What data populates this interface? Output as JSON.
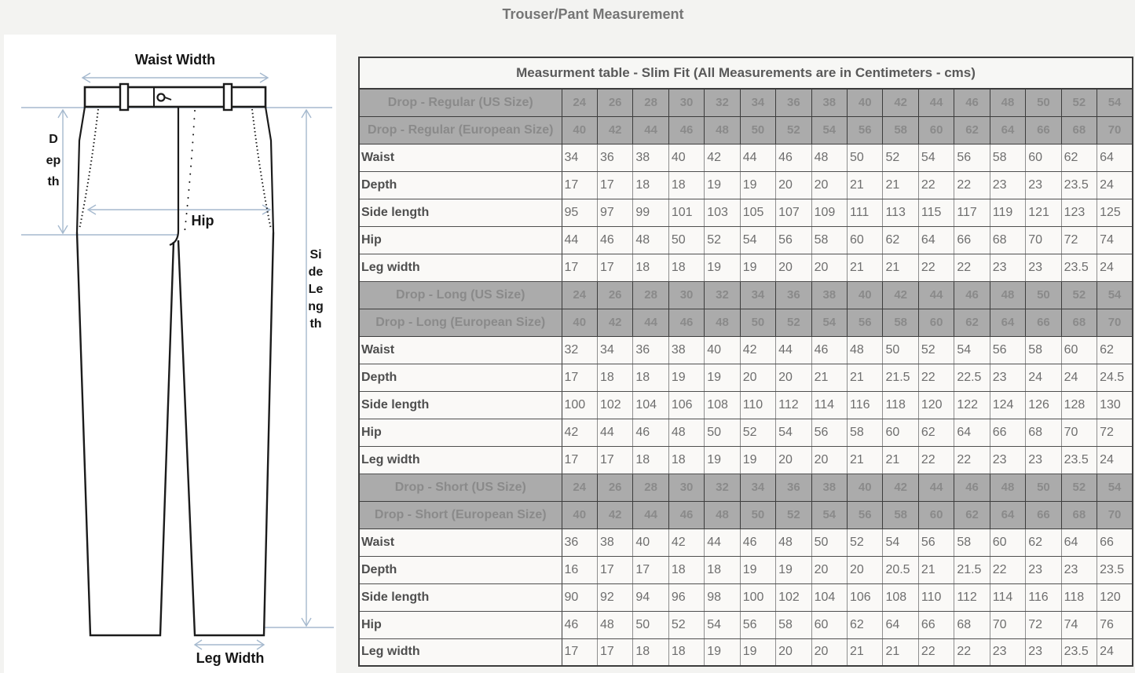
{
  "page": {
    "title": "Trouser/Pant Measurement"
  },
  "colors": {
    "header_bg": "#ababab",
    "header_text": "#8a8a8a",
    "arrow": "#a5b9ce",
    "outline": "#1b1b1b"
  },
  "diagram": {
    "waist_width_label": "Waist Width",
    "depth_label": "Depth",
    "hip_label": "Hip",
    "side_length_label": "Side Length",
    "leg_width_label": "Leg Width"
  },
  "table": {
    "title": "Measurment table - Slim Fit (All Measurements are in Centimeters - cms)",
    "sections": [
      {
        "us_label": "Drop - Regular (US Size)",
        "us_sizes": [
          "24",
          "26",
          "28",
          "30",
          "32",
          "34",
          "36",
          "38",
          "40",
          "42",
          "44",
          "46",
          "48",
          "50",
          "52",
          "54"
        ],
        "eu_label": "Drop - Regular (European Size)",
        "eu_sizes": [
          "40",
          "42",
          "44",
          "46",
          "48",
          "50",
          "52",
          "54",
          "56",
          "58",
          "60",
          "62",
          "64",
          "66",
          "68",
          "70"
        ],
        "rows": [
          {
            "label": "Waist",
            "values": [
              "34",
              "36",
              "38",
              "40",
              "42",
              "44",
              "46",
              "48",
              "50",
              "52",
              "54",
              "56",
              "58",
              "60",
              "62",
              "64"
            ]
          },
          {
            "label": "Depth",
            "values": [
              "17",
              "17",
              "18",
              "18",
              "19",
              "19",
              "20",
              "20",
              "21",
              "21",
              "22",
              "22",
              "23",
              "23",
              "23.5",
              "24"
            ]
          },
          {
            "label": "Side length",
            "values": [
              "95",
              "97",
              "99",
              "101",
              "103",
              "105",
              "107",
              "109",
              "111",
              "113",
              "115",
              "117",
              "119",
              "121",
              "123",
              "125"
            ]
          },
          {
            "label": "Hip",
            "values": [
              "44",
              "46",
              "48",
              "50",
              "52",
              "54",
              "56",
              "58",
              "60",
              "62",
              "64",
              "66",
              "68",
              "70",
              "72",
              "74"
            ]
          },
          {
            "label": "Leg width",
            "values": [
              "17",
              "17",
              "18",
              "18",
              "19",
              "19",
              "20",
              "20",
              "21",
              "21",
              "22",
              "22",
              "23",
              "23",
              "23.5",
              "24"
            ]
          }
        ]
      },
      {
        "us_label": "Drop - Long (US Size)",
        "us_sizes": [
          "24",
          "26",
          "28",
          "30",
          "32",
          "34",
          "36",
          "38",
          "40",
          "42",
          "44",
          "46",
          "48",
          "50",
          "52",
          "54"
        ],
        "eu_label": "Drop - Long (European Size)",
        "eu_sizes": [
          "40",
          "42",
          "44",
          "46",
          "48",
          "50",
          "52",
          "54",
          "56",
          "58",
          "60",
          "62",
          "64",
          "66",
          "68",
          "70"
        ],
        "rows": [
          {
            "label": "Waist",
            "values": [
              "32",
              "34",
              "36",
              "38",
              "40",
              "42",
              "44",
              "46",
              "48",
              "50",
              "52",
              "54",
              "56",
              "58",
              "60",
              "62"
            ]
          },
          {
            "label": "Depth",
            "values": [
              "17",
              "18",
              "18",
              "19",
              "19",
              "20",
              "20",
              "21",
              "21",
              "21.5",
              "22",
              "22.5",
              "23",
              "24",
              "24",
              "24.5"
            ]
          },
          {
            "label": "Side length",
            "values": [
              "100",
              "102",
              "104",
              "106",
              "108",
              "110",
              "112",
              "114",
              "116",
              "118",
              "120",
              "122",
              "124",
              "126",
              "128",
              "130"
            ]
          },
          {
            "label": "Hip",
            "values": [
              "42",
              "44",
              "46",
              "48",
              "50",
              "52",
              "54",
              "56",
              "58",
              "60",
              "62",
              "64",
              "66",
              "68",
              "70",
              "72"
            ]
          },
          {
            "label": "Leg width",
            "values": [
              "17",
              "17",
              "18",
              "18",
              "19",
              "19",
              "20",
              "20",
              "21",
              "21",
              "22",
              "22",
              "23",
              "23",
              "23.5",
              "24"
            ]
          }
        ]
      },
      {
        "us_label": "Drop - Short (US Size)",
        "us_sizes": [
          "24",
          "26",
          "28",
          "30",
          "32",
          "34",
          "36",
          "38",
          "40",
          "42",
          "44",
          "46",
          "48",
          "50",
          "52",
          "54"
        ],
        "eu_label": "Drop - Short (European Size)",
        "eu_sizes": [
          "40",
          "42",
          "44",
          "46",
          "48",
          "50",
          "52",
          "54",
          "56",
          "58",
          "60",
          "62",
          "64",
          "66",
          "68",
          "70"
        ],
        "rows": [
          {
            "label": "Waist",
            "values": [
              "36",
              "38",
              "40",
              "42",
              "44",
              "46",
              "48",
              "50",
              "52",
              "54",
              "56",
              "58",
              "60",
              "62",
              "64",
              "66"
            ]
          },
          {
            "label": "Depth",
            "values": [
              "16",
              "17",
              "17",
              "18",
              "18",
              "19",
              "19",
              "20",
              "20",
              "20.5",
              "21",
              "21.5",
              "22",
              "23",
              "23",
              "23.5"
            ]
          },
          {
            "label": "Side length",
            "values": [
              "90",
              "92",
              "94",
              "96",
              "98",
              "100",
              "102",
              "104",
              "106",
              "108",
              "110",
              "112",
              "114",
              "116",
              "118",
              "120"
            ]
          },
          {
            "label": "Hip",
            "values": [
              "46",
              "48",
              "50",
              "52",
              "54",
              "56",
              "58",
              "60",
              "62",
              "64",
              "66",
              "68",
              "70",
              "72",
              "74",
              "76"
            ]
          },
          {
            "label": "Leg width",
            "values": [
              "17",
              "17",
              "18",
              "18",
              "19",
              "19",
              "20",
              "20",
              "21",
              "21",
              "22",
              "22",
              "23",
              "23",
              "23.5",
              "24"
            ]
          }
        ]
      }
    ]
  }
}
